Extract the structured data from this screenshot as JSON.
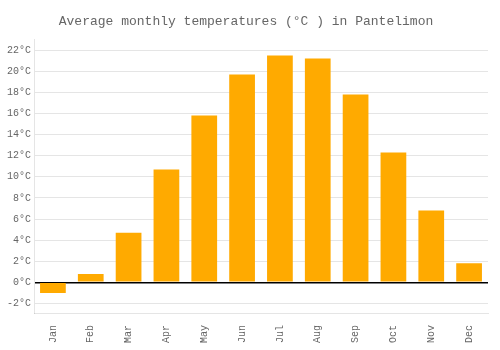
{
  "chart_data": {
    "type": "bar",
    "title": "Average monthly temperatures (°C ) in Pantelimon",
    "categories": [
      "Jan",
      "Feb",
      "Mar",
      "Apr",
      "May",
      "Jun",
      "Jul",
      "Aug",
      "Sep",
      "Oct",
      "Nov",
      "Dec"
    ],
    "values": [
      -1.0,
      0.8,
      4.7,
      10.7,
      15.8,
      19.7,
      21.5,
      21.2,
      17.8,
      12.3,
      6.8,
      1.8
    ],
    "color": "#FFAA00",
    "ylim": [
      -3,
      23
    ],
    "yticks": [
      {
        "value": -2,
        "label": "-2°C"
      },
      {
        "value": 0,
        "label": "0°C"
      },
      {
        "value": 2,
        "label": "2°C"
      },
      {
        "value": 4,
        "label": "4°C"
      },
      {
        "value": 6,
        "label": "6°C"
      },
      {
        "value": 8,
        "label": "8°C"
      },
      {
        "value": 10,
        "label": "10°C"
      },
      {
        "value": 12,
        "label": "12°C"
      },
      {
        "value": 14,
        "label": "14°C"
      },
      {
        "value": 16,
        "label": "16°C"
      },
      {
        "value": 18,
        "label": "18°C"
      },
      {
        "value": 20,
        "label": "20°C"
      },
      {
        "value": 22,
        "label": "22°C"
      }
    ],
    "grid": true
  }
}
